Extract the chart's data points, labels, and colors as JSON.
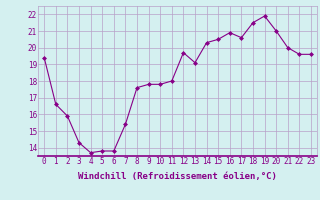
{
  "x": [
    0,
    1,
    2,
    3,
    4,
    5,
    6,
    7,
    8,
    9,
    10,
    11,
    12,
    13,
    14,
    15,
    16,
    17,
    18,
    19,
    20,
    21,
    22,
    23
  ],
  "y": [
    19.4,
    16.6,
    15.9,
    14.3,
    13.7,
    13.8,
    13.8,
    15.4,
    17.6,
    17.8,
    17.8,
    18.0,
    19.7,
    19.1,
    20.3,
    20.5,
    20.9,
    20.6,
    21.5,
    21.9,
    21.0,
    20.0,
    19.6,
    19.6
  ],
  "line_color": "#880088",
  "marker": "D",
  "marker_size": 2.0,
  "bg_color": "#d4f0f0",
  "grid_color": "#b8a0c8",
  "xlabel": "Windchill (Refroidissement éolien,°C)",
  "ylim": [
    13.5,
    22.5
  ],
  "xlim": [
    -0.5,
    23.5
  ],
  "yticks": [
    14,
    15,
    16,
    17,
    18,
    19,
    20,
    21,
    22
  ],
  "xticks": [
    0,
    1,
    2,
    3,
    4,
    5,
    6,
    7,
    8,
    9,
    10,
    11,
    12,
    13,
    14,
    15,
    16,
    17,
    18,
    19,
    20,
    21,
    22,
    23
  ],
  "xlabel_fontsize": 6.5,
  "tick_fontsize": 5.5
}
